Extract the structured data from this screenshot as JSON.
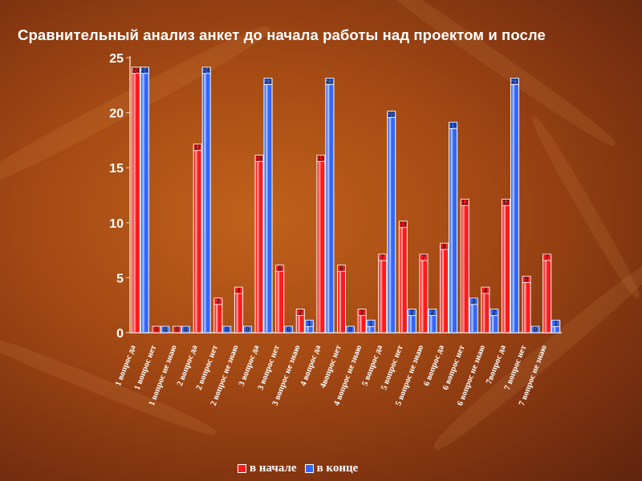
{
  "chart_data": {
    "type": "bar",
    "title": "Сравнительный анализ анкет до начала работы над проектом и после",
    "categories": [
      "1 вопрос да",
      "1 вопрос нет",
      "1 вопрос не знаю",
      "2 вопрос да",
      "2 вопрос нет",
      "2 вопрос не знаю",
      "3 вопрос да",
      "3 вопрос нет",
      "3 вопрос не знаю",
      "4 вопрос да",
      "4вопрос нет",
      "4 вопрос не знаю",
      "5 вопрос да",
      "5 вопрос нет",
      "5 вопрос не знаю",
      "6 вопрос да",
      "6 вопрос нет",
      "6 вопрос не знаю",
      "7вопрос да",
      "7 вопрос нет",
      "7 вопрос не знаю"
    ],
    "series": [
      {
        "name": "в начале",
        "color": "#ff1a1a",
        "values": [
          24,
          0,
          0,
          17,
          3,
          4,
          16,
          6,
          2,
          16,
          6,
          2,
          7,
          10,
          7,
          8,
          12,
          4,
          12,
          5,
          7
        ]
      },
      {
        "name": "в конце",
        "color": "#3366ff",
        "values": [
          24,
          0,
          0,
          24,
          0,
          0,
          23,
          0,
          1,
          23,
          0,
          1,
          20,
          2,
          2,
          19,
          3,
          2,
          23,
          0,
          1
        ]
      }
    ],
    "ylim": [
      0,
      25
    ],
    "yticks": [
      "0",
      "5",
      "10",
      "15",
      "20",
      "25"
    ],
    "xlabel": "",
    "ylabel": "",
    "legend": "bottom"
  }
}
